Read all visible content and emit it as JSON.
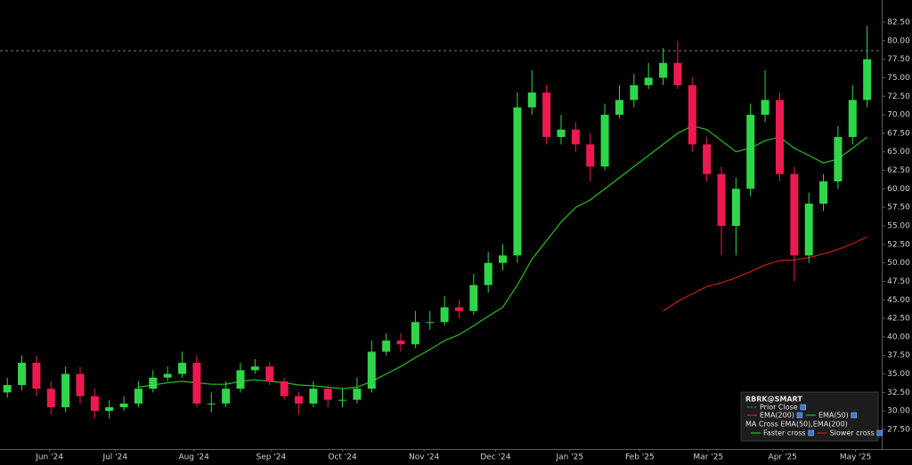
{
  "chart_data": {
    "type": "candlestick",
    "x": [
      0,
      1,
      2,
      3,
      4,
      5,
      6,
      7,
      8,
      9,
      10,
      11,
      12,
      13,
      14,
      15,
      16,
      17,
      18,
      19,
      20,
      21,
      22,
      23,
      24,
      25,
      26,
      27,
      28,
      29,
      30,
      31,
      32,
      33,
      34,
      35,
      36,
      37,
      38,
      39,
      40,
      41,
      42,
      43,
      44,
      45,
      46,
      47,
      48,
      49,
      50,
      51,
      52,
      53,
      54,
      55,
      56,
      57,
      58,
      59
    ],
    "open": [
      32.5,
      33.5,
      36.5,
      33,
      30.5,
      35,
      32,
      30,
      30.5,
      31,
      33,
      34.5,
      35,
      36.5,
      31,
      31,
      33,
      35.5,
      36,
      34,
      32,
      31,
      33,
      31.5,
      31.5,
      33,
      38,
      39.5,
      39,
      42,
      42,
      44,
      43.5,
      47,
      50,
      51,
      71,
      73,
      67,
      68,
      66,
      63,
      70,
      72,
      74,
      75,
      77,
      74,
      66,
      62,
      55,
      60,
      70,
      72,
      62,
      51,
      58,
      61,
      67,
      72
    ],
    "high": [
      34.5,
      37.5,
      37.5,
      34,
      36,
      36,
      33,
      31.5,
      32,
      34,
      35.5,
      36,
      38,
      37.5,
      32.5,
      34,
      36.5,
      37,
      36.5,
      34.5,
      32.5,
      34,
      33.5,
      33,
      34.5,
      39.5,
      40.5,
      40.5,
      43.5,
      43.5,
      45.5,
      45,
      48.5,
      51.5,
      52.5,
      73,
      76,
      74,
      70,
      69,
      67.5,
      71.5,
      74,
      75.5,
      77,
      79,
      80,
      75,
      67,
      63,
      61.5,
      71.5,
      76,
      73,
      63,
      59.5,
      62,
      68.5,
      74,
      82
    ],
    "low": [
      31.8,
      32.8,
      32,
      29.5,
      29.8,
      31,
      29,
      29,
      30,
      30.5,
      32.5,
      34,
      34.5,
      30.5,
      29.8,
      30.5,
      32.5,
      35,
      33.5,
      31.5,
      29.5,
      30.5,
      30.5,
      30.5,
      31,
      32.5,
      37.5,
      38,
      38.5,
      41,
      41.5,
      42.5,
      43,
      46,
      49,
      50,
      70,
      66,
      66,
      65,
      61,
      62.5,
      69.5,
      71,
      73.5,
      74,
      73.5,
      65,
      61,
      51,
      51,
      59,
      69,
      61,
      47.5,
      50,
      57,
      60,
      66,
      71
    ],
    "close": [
      33.5,
      36.5,
      33,
      30.5,
      35,
      32,
      30,
      30.5,
      31,
      33,
      34.5,
      35,
      36.5,
      31,
      31,
      33,
      35.5,
      36,
      34,
      32,
      31,
      33,
      31.5,
      31.5,
      33,
      38,
      39.5,
      39,
      42,
      42,
      44,
      43.5,
      47,
      50,
      51,
      71,
      73,
      67,
      68,
      66,
      63,
      70,
      72,
      74,
      75,
      77,
      74,
      66,
      62,
      55,
      60,
      70,
      72,
      62,
      51,
      58,
      61,
      67,
      72,
      77.5
    ],
    "up_color": "#2fd64a",
    "down_color": "#ec1a4f",
    "series": [
      {
        "name": "EMA(200)",
        "color": "#d11a1a",
        "values": [
          null,
          null,
          null,
          null,
          null,
          null,
          null,
          null,
          null,
          null,
          null,
          null,
          null,
          null,
          null,
          null,
          null,
          null,
          null,
          null,
          null,
          null,
          null,
          null,
          null,
          null,
          null,
          null,
          null,
          null,
          null,
          null,
          null,
          null,
          null,
          null,
          null,
          null,
          null,
          null,
          null,
          null,
          null,
          null,
          null,
          43.5,
          44.8,
          45.8,
          46.8,
          47.3,
          48,
          48.8,
          49.7,
          50.3,
          50.4,
          50.7,
          51.2,
          51.8,
          52.6,
          53.5
        ]
      },
      {
        "name": "EMA(50)",
        "color": "#22c11e",
        "values": [
          null,
          null,
          null,
          null,
          null,
          null,
          null,
          null,
          null,
          33.2,
          33.5,
          33.8,
          34,
          33.8,
          33.6,
          33.6,
          34,
          34.2,
          34,
          33.8,
          33.5,
          33.4,
          33.2,
          33,
          33.2,
          34,
          35,
          36,
          37.2,
          38.3,
          39.5,
          40.3,
          41.5,
          42.8,
          44,
          47,
          50.5,
          53,
          55.5,
          57.5,
          58.5,
          60,
          61.5,
          63,
          64.5,
          66,
          67.5,
          68.5,
          68,
          66.5,
          65,
          65.5,
          66.5,
          67,
          65.5,
          64.5,
          63.5,
          64,
          65.5,
          67
        ]
      }
    ],
    "prior_close": {
      "name": "Prior Close",
      "value": 78.65,
      "color": "#8a8a8a"
    },
    "legend_title": "RBRK@SMART",
    "indicator_group": "MA Cross EMA(50),EMA(200)",
    "cross_series": [
      {
        "name": "Faster cross",
        "color": "#22c11e"
      },
      {
        "name": "Slower cross",
        "color": "#d11a1a"
      }
    ],
    "xlim": [
      -0.5,
      60
    ],
    "xticks": [
      {
        "value": 2.9,
        "label": "Jun '24"
      },
      {
        "value": 7.4,
        "label": "Jul '24"
      },
      {
        "value": 12.8,
        "label": "Aug '24"
      },
      {
        "value": 18.1,
        "label": "Sep '24"
      },
      {
        "value": 23,
        "label": "Oct '24"
      },
      {
        "value": 28.6,
        "label": "Nov '24"
      },
      {
        "value": 33.5,
        "label": "Dec '24"
      },
      {
        "value": 38.6,
        "label": "Jan '25"
      },
      {
        "value": 43.4,
        "label": "Feb '25"
      },
      {
        "value": 48.1,
        "label": "Mar '25"
      },
      {
        "value": 53.2,
        "label": "Apr '25"
      },
      {
        "value": 58.2,
        "label": "May '25"
      }
    ],
    "ylim": [
      24.86,
      85.5
    ],
    "yticks": [
      {
        "value": 27.5,
        "label": "27.50"
      },
      {
        "value": 30,
        "label": "30.00"
      },
      {
        "value": 32.5,
        "label": "32.50"
      },
      {
        "value": 35,
        "label": "35.00"
      },
      {
        "value": 37.5,
        "label": "37.50"
      },
      {
        "value": 40,
        "label": "40.00"
      },
      {
        "value": 42.5,
        "label": "42.50"
      },
      {
        "value": 45,
        "label": "45.00"
      },
      {
        "value": 47.5,
        "label": "47.50"
      },
      {
        "value": 50,
        "label": "50.00"
      },
      {
        "value": 52.5,
        "label": "52.50"
      },
      {
        "value": 55,
        "label": "55.00"
      },
      {
        "value": 57.5,
        "label": "57.50"
      },
      {
        "value": 60,
        "label": "60.00"
      },
      {
        "value": 62.5,
        "label": "62.50"
      },
      {
        "value": 65,
        "label": "65.00"
      },
      {
        "value": 67.5,
        "label": "67.50"
      },
      {
        "value": 70,
        "label": "70.00"
      },
      {
        "value": 72.5,
        "label": "72.50"
      },
      {
        "value": 75,
        "label": "75.00"
      },
      {
        "value": 77.5,
        "label": "77.50"
      },
      {
        "value": 80,
        "label": "80.00"
      },
      {
        "value": 82.5,
        "label": "82.50"
      }
    ],
    "y_axis_side": "right",
    "grid": false
  }
}
